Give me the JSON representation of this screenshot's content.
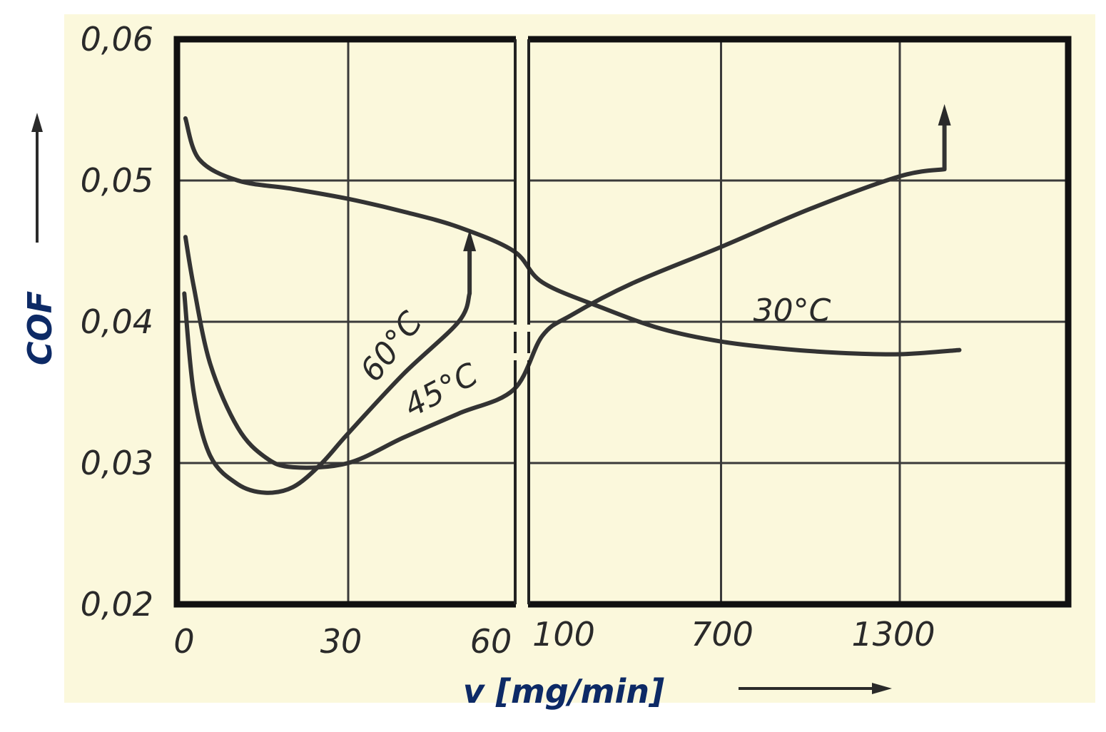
{
  "chart_data": {
    "type": "line",
    "title": "",
    "xlabel": "v [mg/min]",
    "ylabel": "COF",
    "ylim": [
      0.02,
      0.06
    ],
    "y_ticks": [
      "0,02",
      "0,03",
      "0,04",
      "0,05",
      "0,06"
    ],
    "x_ticks_left": [
      "0",
      "30",
      "60"
    ],
    "x_ticks_right": [
      "100",
      "700",
      "1300"
    ],
    "x_axis": "broken: linear 0–60 on the left panel, 100–1300 on the right panel",
    "grid": true,
    "background_color": "#fbf8dc",
    "series": [
      {
        "name": "30°C",
        "points": [
          [
            0.5,
            0.0544
          ],
          [
            3,
            0.0515
          ],
          [
            10,
            0.05
          ],
          [
            20,
            0.0494
          ],
          [
            30,
            0.0487
          ],
          [
            40,
            0.0478
          ],
          [
            50,
            0.0467
          ],
          [
            60,
            0.045
          ],
          [
            100,
            0.0428
          ],
          [
            300,
            0.041
          ],
          [
            500,
            0.0395
          ],
          [
            700,
            0.0386
          ],
          [
            900,
            0.0381
          ],
          [
            1100,
            0.0378
          ],
          [
            1300,
            0.0377
          ],
          [
            1500,
            0.038
          ]
        ]
      },
      {
        "name": "45°C",
        "points": [
          [
            0.5,
            0.046
          ],
          [
            2,
            0.0425
          ],
          [
            5,
            0.037
          ],
          [
            10,
            0.0325
          ],
          [
            15,
            0.0304
          ],
          [
            20,
            0.0297
          ],
          [
            30,
            0.03
          ],
          [
            40,
            0.0318
          ],
          [
            50,
            0.0335
          ],
          [
            60,
            0.0352
          ],
          [
            100,
            0.039
          ],
          [
            200,
            0.0405
          ],
          [
            400,
            0.0427
          ],
          [
            700,
            0.0453
          ],
          [
            1000,
            0.048
          ],
          [
            1300,
            0.0503
          ],
          [
            1450,
            0.0508
          ],
          [
            1450,
            0.0546
          ]
        ]
      },
      {
        "name": "60°C",
        "points": [
          [
            0.3,
            0.042
          ],
          [
            2,
            0.035
          ],
          [
            5,
            0.0305
          ],
          [
            10,
            0.0285
          ],
          [
            15,
            0.0279
          ],
          [
            20,
            0.0283
          ],
          [
            25,
            0.0299
          ],
          [
            30,
            0.0321
          ],
          [
            40,
            0.0363
          ],
          [
            50,
            0.04
          ],
          [
            52,
            0.042
          ],
          [
            52,
            0.0457
          ]
        ]
      }
    ]
  }
}
